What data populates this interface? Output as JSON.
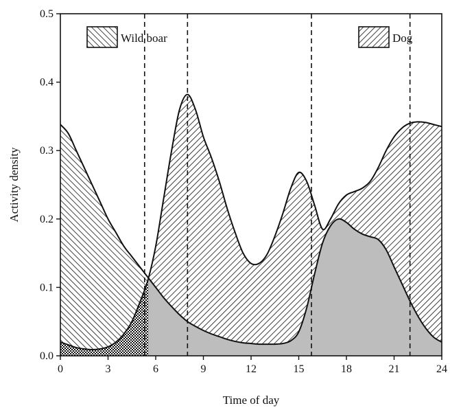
{
  "chart_data": {
    "type": "area",
    "xlabel": "Time of day",
    "ylabel": "Activity density",
    "xlim": [
      0,
      24
    ],
    "ylim": [
      0,
      0.5
    ],
    "xticks": [
      "0",
      "3",
      "6",
      "9",
      "12",
      "15",
      "18",
      "21",
      "24"
    ],
    "yticks": [
      "0.0",
      "0.1",
      "0.2",
      "0.3",
      "0.4",
      "0.5"
    ],
    "x": [
      0,
      0.5,
      1,
      1.5,
      2,
      2.5,
      3,
      3.5,
      4,
      4.5,
      5,
      5.5,
      6,
      6.5,
      7,
      7.5,
      8,
      8.5,
      9,
      9.5,
      10,
      10.5,
      11,
      11.5,
      12,
      12.5,
      13,
      13.5,
      14,
      14.5,
      15,
      15.5,
      16,
      16.5,
      17,
      17.5,
      18,
      18.5,
      19,
      19.5,
      20,
      20.5,
      21,
      21.5,
      22,
      22.5,
      23,
      23.5,
      24
    ],
    "series": [
      {
        "name": "Wild boar",
        "pattern": "backslash",
        "values": [
          0.338,
          0.325,
          0.3,
          0.275,
          0.25,
          0.225,
          0.2,
          0.18,
          0.16,
          0.145,
          0.13,
          0.115,
          0.1,
          0.085,
          0.072,
          0.06,
          0.05,
          0.043,
          0.037,
          0.032,
          0.028,
          0.024,
          0.021,
          0.019,
          0.018,
          0.017,
          0.017,
          0.017,
          0.018,
          0.022,
          0.035,
          0.07,
          0.12,
          0.165,
          0.19,
          0.2,
          0.195,
          0.185,
          0.178,
          0.174,
          0.17,
          0.155,
          0.13,
          0.105,
          0.08,
          0.058,
          0.04,
          0.027,
          0.02
        ]
      },
      {
        "name": "Dog",
        "pattern": "slash",
        "values": [
          0.02,
          0.016,
          0.012,
          0.01,
          0.009,
          0.01,
          0.013,
          0.02,
          0.032,
          0.05,
          0.078,
          0.11,
          0.16,
          0.23,
          0.3,
          0.36,
          0.382,
          0.36,
          0.32,
          0.29,
          0.255,
          0.215,
          0.18,
          0.15,
          0.135,
          0.135,
          0.148,
          0.175,
          0.208,
          0.245,
          0.268,
          0.255,
          0.22,
          0.185,
          0.2,
          0.222,
          0.235,
          0.24,
          0.245,
          0.255,
          0.275,
          0.3,
          0.32,
          0.333,
          0.34,
          0.342,
          0.341,
          0.338,
          0.335
        ]
      }
    ],
    "overlap": "gray shading under the lower curve between crossings; dense crosshatch elsewhere under the lower curve",
    "vlines": [
      5.3,
      8.0,
      15.8,
      22.0
    ],
    "legend": [
      "Wild boar",
      "Dog"
    ],
    "grid": false
  }
}
